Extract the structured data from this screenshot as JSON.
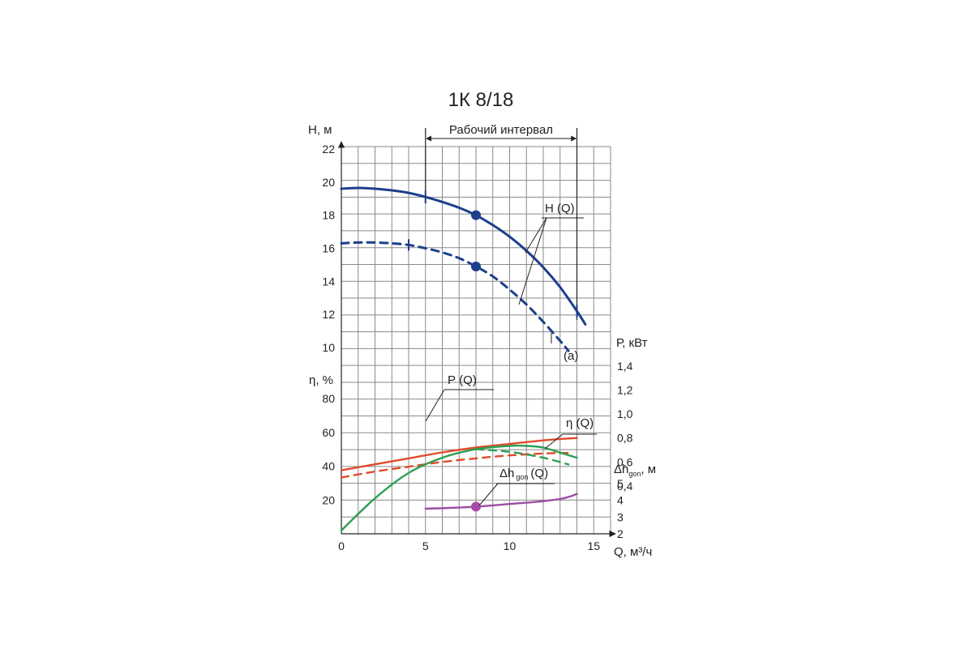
{
  "chart_data": {
    "type": "line",
    "title": "1К 8/18",
    "xlabel": "Q, м³/ч",
    "x_ticks": [
      "0",
      "5",
      "10",
      "15"
    ],
    "xlim": [
      0,
      15
    ],
    "grid": true,
    "working_range": {
      "label": "Рабочий интервал",
      "from": 5,
      "to": 14
    },
    "axes": {
      "H": {
        "label": "Н, м",
        "ticks": [
          "10",
          "12",
          "14",
          "16",
          "18",
          "20",
          "22"
        ],
        "range": [
          10,
          22
        ]
      },
      "eta": {
        "label": "η, %",
        "ticks": [
          "20",
          "40",
          "60",
          "80"
        ],
        "range": [
          0,
          90
        ]
      },
      "P": {
        "label": "Р, кВт",
        "ticks": [
          "0,4",
          "0,6",
          "0,8",
          "1,0",
          "1,2",
          "1,4"
        ],
        "range": [
          0,
          1.4
        ]
      },
      "dh": {
        "label": "Δh",
        "sub": "gon",
        "suffix": ", м",
        "ticks": [
          "2",
          "3",
          "4",
          "5"
        ],
        "range": [
          2,
          6
        ]
      }
    },
    "series": [
      {
        "name": "Н (Q)",
        "axis": "H",
        "color": "#1c3f8c",
        "dashed": false,
        "x": [
          0,
          1,
          2,
          3,
          4,
          5,
          6,
          7,
          8,
          9,
          10,
          11,
          12,
          13,
          14,
          14.5
        ],
        "y": [
          19.6,
          19.65,
          19.6,
          19.5,
          19.35,
          19.1,
          18.8,
          18.45,
          18.0,
          17.4,
          16.7,
          15.85,
          14.85,
          13.65,
          12.2,
          11.4
        ]
      },
      {
        "name": "",
        "axis": "H",
        "color": "#1c3f8c",
        "dashed": true,
        "x": [
          0,
          1,
          2,
          3,
          4,
          5,
          6,
          7,
          8,
          9,
          10,
          11,
          12,
          13,
          13.5
        ],
        "y": [
          16.3,
          16.35,
          16.35,
          16.3,
          16.2,
          16.0,
          15.75,
          15.4,
          14.9,
          14.3,
          13.5,
          12.6,
          11.55,
          10.4,
          9.8
        ]
      },
      {
        "name": "Р (Q)",
        "axis": "P",
        "color": "#e04a2c",
        "dashed": false,
        "x": [
          0,
          2,
          4,
          6,
          8,
          10,
          12,
          14
        ],
        "y": [
          0.53,
          0.58,
          0.63,
          0.68,
          0.72,
          0.75,
          0.78,
          0.8
        ]
      },
      {
        "name": "",
        "axis": "P",
        "color": "#e04a2c",
        "dashed": true,
        "x": [
          0,
          2,
          4,
          6,
          8,
          10,
          12,
          13.5
        ],
        "y": [
          0.47,
          0.52,
          0.56,
          0.6,
          0.63,
          0.655,
          0.67,
          0.675
        ]
      },
      {
        "name": "η (Q)",
        "axis": "eta",
        "color": "#2e9e52",
        "dashed": false,
        "x": [
          0,
          2,
          4,
          6,
          8,
          10,
          11,
          12,
          13,
          14
        ],
        "y": [
          2,
          21,
          36,
          45,
          50,
          52,
          52,
          51,
          48,
          45
        ]
      },
      {
        "name": "",
        "axis": "eta",
        "color": "#2e9e52",
        "dashed": true,
        "x": [
          8,
          10,
          12,
          13.5
        ],
        "y": [
          50,
          48.5,
          45,
          41
        ]
      },
      {
        "name": "Δh gon (Q)",
        "axis": "dh",
        "color": "#9b4da3",
        "dashed": false,
        "x": [
          5,
          6,
          7,
          8,
          9,
          10,
          11,
          12,
          13,
          13.5,
          14
        ],
        "y": [
          3.5,
          3.53,
          3.57,
          3.62,
          3.7,
          3.78,
          3.86,
          3.95,
          4.08,
          4.2,
          4.38
        ]
      }
    ],
    "points": [
      {
        "axis": "H",
        "x": 8,
        "y": 18.0,
        "color": "#1c3f8c"
      },
      {
        "axis": "H",
        "x": 8,
        "y": 14.9,
        "color": "#1c3f8c"
      },
      {
        "axis": "dh",
        "x": 8,
        "y": 3.62,
        "color": "#a64ba8"
      }
    ],
    "annotations": [
      {
        "text": "(a)"
      }
    ]
  }
}
